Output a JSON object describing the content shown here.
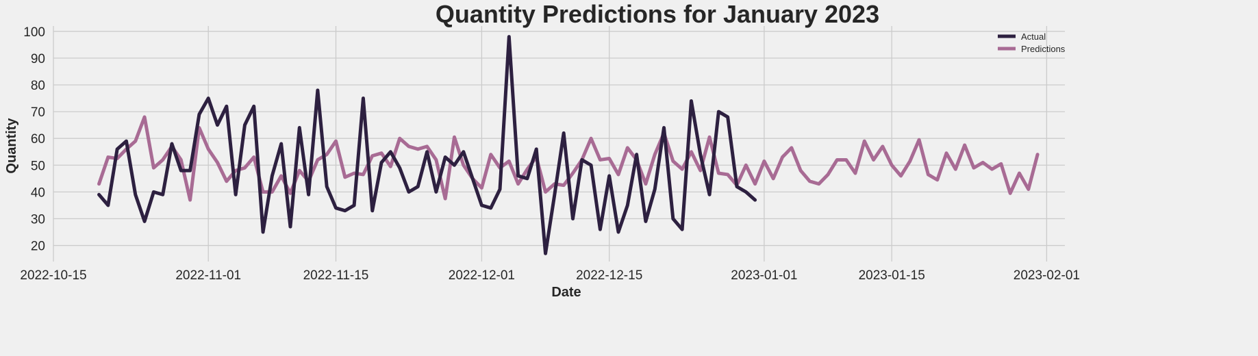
{
  "chart_data": {
    "type": "line",
    "title": "Quantity Predictions for January 2023",
    "xlabel": "Date",
    "ylabel": "Quantity",
    "xlim": [
      "2022-10-15",
      "2023-02-03"
    ],
    "ylim": [
      14,
      102
    ],
    "grid": true,
    "legend_position": "top-right",
    "x_ticks": [
      "2022-10-15",
      "2022-11-01",
      "2022-11-15",
      "2022-12-01",
      "2022-12-15",
      "2023-01-01",
      "2023-01-15",
      "2023-02-01"
    ],
    "y_ticks": [
      20,
      30,
      40,
      50,
      60,
      70,
      80,
      90,
      100
    ],
    "series": [
      {
        "name": "Actual",
        "color": "#2d2040",
        "start_date": "2022-10-20",
        "values": [
          39,
          35,
          56,
          59,
          39,
          29,
          40,
          39,
          58,
          48,
          48,
          69,
          75,
          65,
          72,
          39,
          65,
          72,
          25,
          46,
          58,
          27,
          64,
          39,
          78,
          42,
          34,
          33,
          35,
          75,
          33,
          51,
          55,
          49,
          40,
          42,
          55,
          40,
          53,
          50,
          55,
          45,
          35,
          34,
          41,
          98,
          46,
          45,
          56,
          17,
          39,
          62,
          30,
          52,
          50,
          26,
          46,
          25,
          35,
          54,
          29,
          41,
          64,
          30,
          26,
          74,
          54,
          39,
          70,
          68,
          42,
          40,
          37
        ]
      },
      {
        "name": "Predictions",
        "color": "#a86b94",
        "start_date": "2022-10-20",
        "values": [
          43,
          53,
          52.5,
          56,
          59,
          68,
          49,
          52,
          57,
          52,
          37,
          64,
          56,
          51,
          44,
          48,
          49,
          53,
          40,
          40,
          46,
          39.5,
          48,
          44,
          52,
          54,
          59,
          45.5,
          47,
          46.5,
          53.5,
          54.5,
          49.5,
          60,
          57,
          56,
          57,
          52,
          37.5,
          60.5,
          50,
          45,
          41.5,
          54,
          49,
          51.5,
          43,
          48.5,
          53,
          40,
          43,
          42.5,
          47,
          52,
          60,
          52,
          52.5,
          46.5,
          56.5,
          52,
          43,
          54,
          62,
          51.5,
          48.5,
          55,
          48,
          60.5,
          47,
          46.5,
          42.5,
          50,
          43,
          51.5,
          45,
          53,
          56.5,
          48,
          44,
          43,
          46.5,
          52,
          52,
          47,
          59,
          52,
          57,
          50,
          46,
          51.5,
          59.5,
          46.5,
          44.5,
          54.5,
          48.5,
          57.5,
          49,
          51,
          48.5,
          50.5,
          39.5,
          47,
          41,
          54
        ]
      }
    ]
  }
}
